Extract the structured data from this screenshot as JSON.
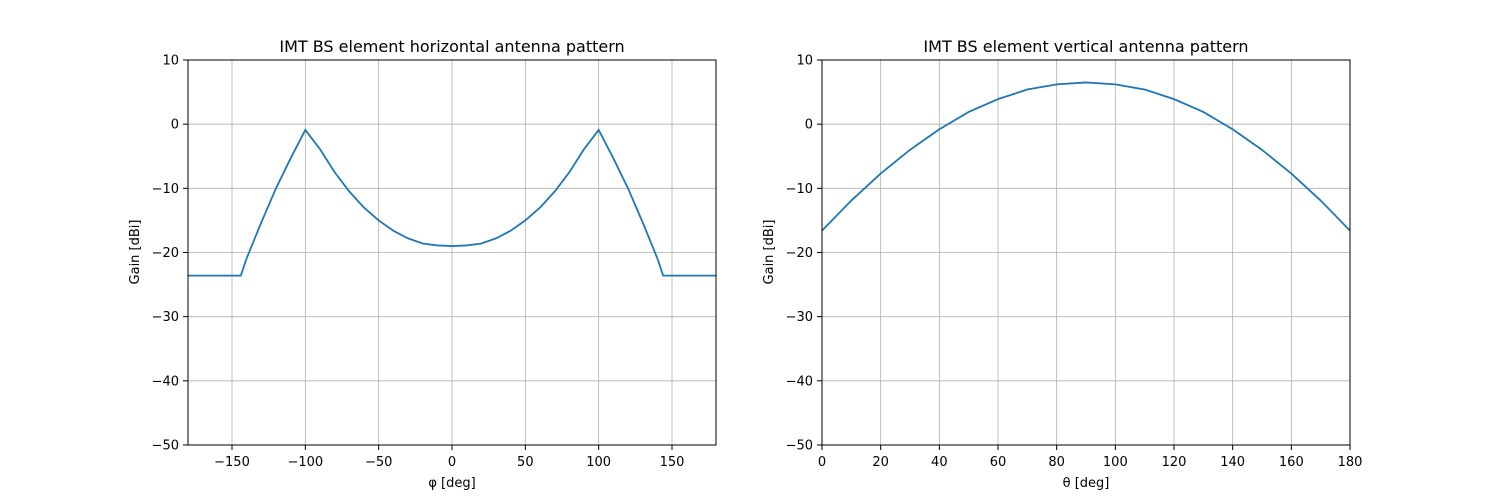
{
  "chart_data": [
    {
      "type": "line",
      "title": "IMT BS element horizontal antenna pattern",
      "xlabel": "φ [deg]",
      "ylabel": "Gain [dBi]",
      "xlim": [
        -180,
        180
      ],
      "ylim": [
        -50,
        10
      ],
      "xticks": [
        -150,
        -100,
        -50,
        0,
        50,
        100,
        150
      ],
      "yticks": [
        -50,
        -40,
        -30,
        -20,
        -10,
        0,
        10
      ],
      "grid": true,
      "series": [
        {
          "color": "#1f77b4",
          "x": [
            -180,
            -170,
            -160,
            -150,
            -144,
            -140,
            -130,
            -120,
            -110,
            -100,
            -90,
            -80,
            -70,
            -60,
            -50,
            -40,
            -30,
            -20,
            -10,
            0,
            10,
            20,
            30,
            40,
            50,
            60,
            70,
            80,
            90,
            100,
            110,
            120,
            130,
            140,
            144,
            150,
            160,
            170,
            180
          ],
          "y": [
            -23.6,
            -23.6,
            -23.6,
            -23.6,
            -23.6,
            -20.9,
            -15.3,
            -10.0,
            -5.3,
            -0.9,
            -3.9,
            -7.5,
            -10.5,
            -13.0,
            -15.0,
            -16.6,
            -17.8,
            -18.6,
            -18.9,
            -19.0,
            -18.9,
            -18.6,
            -17.8,
            -16.6,
            -15.0,
            -13.0,
            -10.5,
            -7.5,
            -3.9,
            -0.9,
            -5.3,
            -10.0,
            -15.3,
            -20.9,
            -23.6,
            -23.6,
            -23.6,
            -23.6,
            -23.6
          ]
        }
      ]
    },
    {
      "type": "line",
      "title": "IMT BS element vertical antenna pattern",
      "xlabel": "θ [deg]",
      "ylabel": "Gain [dBi]",
      "xlim": [
        0,
        180
      ],
      "ylim": [
        -50,
        10
      ],
      "xticks": [
        0,
        20,
        40,
        60,
        80,
        100,
        120,
        140,
        160,
        180
      ],
      "yticks": [
        -50,
        -40,
        -30,
        -20,
        -10,
        0,
        10
      ],
      "grid": true,
      "series": [
        {
          "color": "#1f77b4",
          "x": [
            0,
            10,
            20,
            30,
            40,
            50,
            60,
            70,
            80,
            90,
            100,
            110,
            120,
            130,
            140,
            150,
            160,
            170,
            180
          ],
          "y": [
            -16.6,
            -11.9,
            -7.7,
            -4.0,
            -0.8,
            1.9,
            3.9,
            5.4,
            6.2,
            6.5,
            6.2,
            5.4,
            3.9,
            1.9,
            -0.8,
            -4.0,
            -7.7,
            -11.9,
            -16.6
          ]
        }
      ]
    }
  ]
}
